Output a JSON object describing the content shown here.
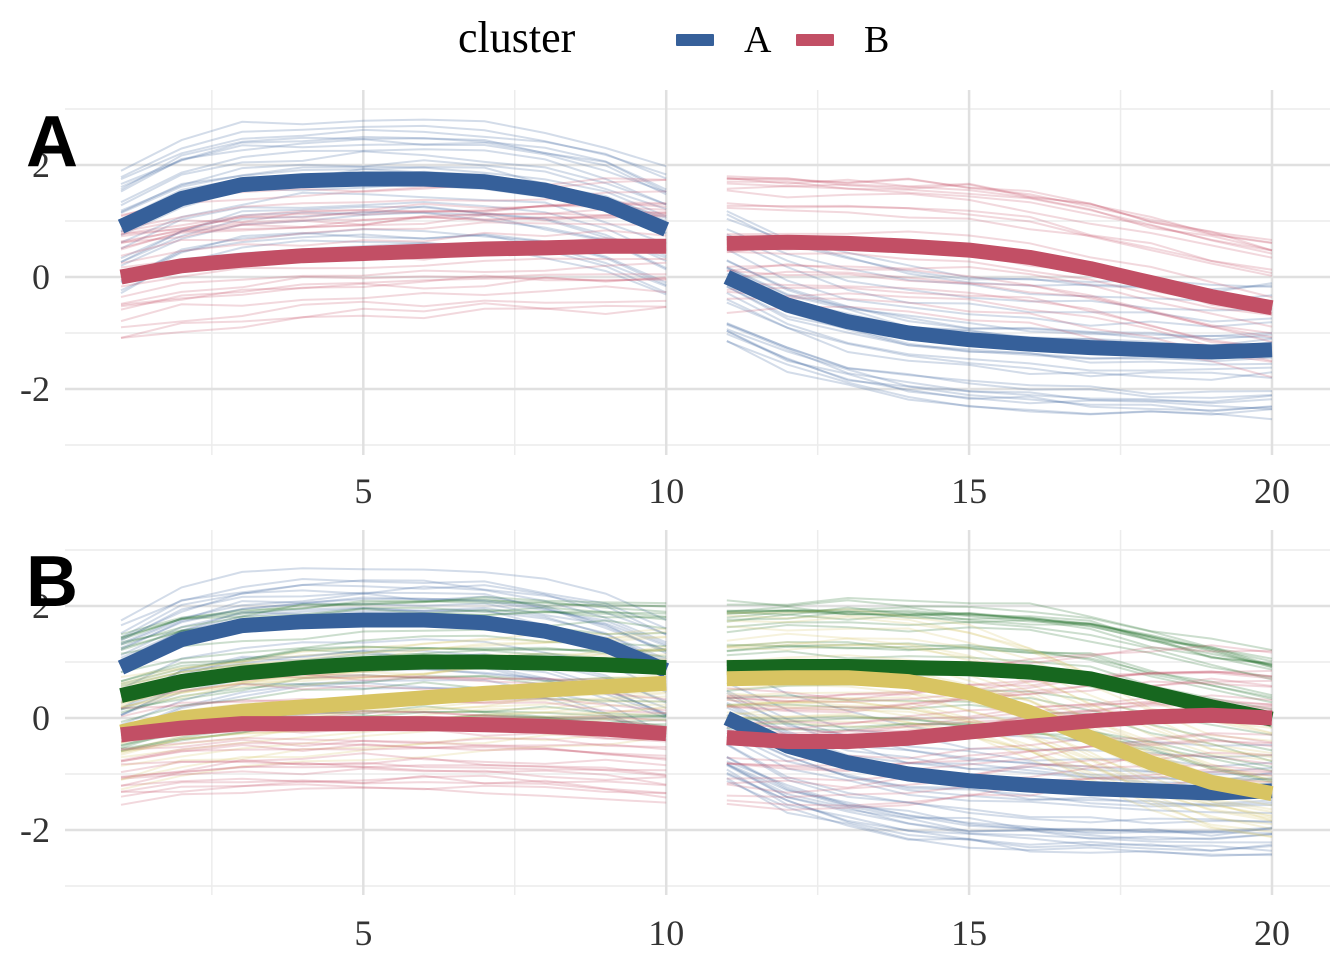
{
  "legend": {
    "title": "cluster",
    "items": [
      {
        "label": "A",
        "color": "#36609a"
      },
      {
        "label": "B",
        "color": "#c24f65"
      }
    ]
  },
  "colors": {
    "A": "#36609a",
    "B": "#c24f65",
    "C": "#17671f",
    "D": "#d8c462"
  },
  "chart_data": [
    {
      "type": "line",
      "panel_tag": "A",
      "xlim": [
        0,
        21
      ],
      "ylim": [
        -3,
        3
      ],
      "x_ticks": [
        5,
        10,
        15,
        20
      ],
      "y_ticks": [
        -2,
        0,
        2
      ],
      "grid": true,
      "legend_position": "top",
      "segments": [
        [
          1,
          10
        ],
        [
          11,
          20
        ]
      ],
      "series": [
        {
          "name": "A",
          "color": "#36609a",
          "x": [
            1,
            2,
            3,
            4,
            5,
            6,
            7,
            8,
            9,
            10,
            11,
            12,
            13,
            14,
            15,
            16,
            17,
            18,
            19,
            20
          ],
          "values": [
            0.9,
            1.4,
            1.65,
            1.72,
            1.75,
            1.75,
            1.7,
            1.55,
            1.3,
            0.85,
            0.0,
            -0.5,
            -0.8,
            -1.0,
            -1.12,
            -1.2,
            -1.26,
            -1.3,
            -1.34,
            -1.3
          ]
        },
        {
          "name": "B",
          "color": "#c24f65",
          "x": [
            1,
            2,
            3,
            4,
            5,
            6,
            7,
            8,
            9,
            10,
            11,
            12,
            13,
            14,
            15,
            16,
            17,
            18,
            19,
            20
          ],
          "values": [
            0.0,
            0.2,
            0.3,
            0.38,
            0.42,
            0.46,
            0.5,
            0.52,
            0.55,
            0.55,
            0.6,
            0.62,
            0.6,
            0.55,
            0.48,
            0.35,
            0.15,
            -0.1,
            -0.35,
            -0.55
          ]
        }
      ]
    },
    {
      "type": "line",
      "panel_tag": "B",
      "xlim": [
        0,
        21
      ],
      "ylim": [
        -3,
        3
      ],
      "x_ticks": [
        5,
        10,
        15,
        20
      ],
      "y_ticks": [
        -2,
        0,
        2
      ],
      "grid": true,
      "legend_position": "top",
      "segments": [
        [
          1,
          10
        ],
        [
          11,
          20
        ]
      ],
      "series": [
        {
          "color": "#36609a",
          "x": [
            1,
            2,
            3,
            4,
            5,
            6,
            7,
            8,
            9,
            10,
            11,
            12,
            13,
            14,
            15,
            16,
            17,
            18,
            19,
            20
          ],
          "values": [
            0.9,
            1.4,
            1.65,
            1.72,
            1.75,
            1.75,
            1.7,
            1.55,
            1.3,
            0.85,
            0.0,
            -0.5,
            -0.8,
            -1.0,
            -1.12,
            -1.2,
            -1.26,
            -1.3,
            -1.34,
            -1.3
          ]
        },
        {
          "color": "#17671f",
          "x": [
            1,
            2,
            3,
            4,
            5,
            6,
            7,
            8,
            9,
            10,
            11,
            12,
            13,
            14,
            15,
            16,
            17,
            18,
            19,
            20
          ],
          "values": [
            0.4,
            0.65,
            0.8,
            0.9,
            0.97,
            1.0,
            1.0,
            0.98,
            0.95,
            0.9,
            0.9,
            0.92,
            0.92,
            0.9,
            0.88,
            0.82,
            0.7,
            0.45,
            0.2,
            -0.02
          ]
        },
        {
          "color": "#d8c462",
          "x": [
            1,
            2,
            3,
            4,
            5,
            6,
            7,
            8,
            9,
            10,
            11,
            12,
            13,
            14,
            15,
            16,
            17,
            18,
            19,
            20
          ],
          "values": [
            -0.25,
            0.0,
            0.12,
            0.2,
            0.28,
            0.36,
            0.44,
            0.5,
            0.56,
            0.62,
            0.7,
            0.72,
            0.72,
            0.65,
            0.45,
            0.1,
            -0.35,
            -0.8,
            -1.15,
            -1.35
          ]
        },
        {
          "color": "#c24f65",
          "x": [
            1,
            2,
            3,
            4,
            5,
            6,
            7,
            8,
            9,
            10,
            11,
            12,
            13,
            14,
            15,
            16,
            17,
            18,
            19,
            20
          ],
          "values": [
            -0.3,
            -0.18,
            -0.1,
            -0.1,
            -0.1,
            -0.1,
            -0.12,
            -0.15,
            -0.2,
            -0.28,
            -0.35,
            -0.42,
            -0.42,
            -0.36,
            -0.25,
            -0.15,
            -0.05,
            0.02,
            0.05,
            0.0
          ]
        }
      ]
    }
  ]
}
